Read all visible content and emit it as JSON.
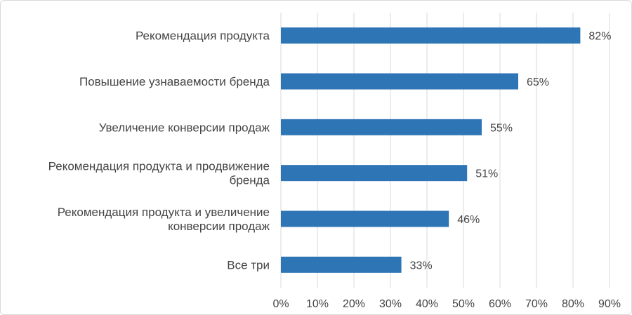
{
  "chart_data": {
    "type": "bar",
    "orientation": "horizontal",
    "categories": [
      "Рекомендация продукта",
      "Повышение узнаваемости бренда",
      "Увеличение конверсии продаж",
      "Рекомендация продукта и продвижение бренда",
      "Рекомендация продукта и увеличение конверсии продаж",
      "Все три"
    ],
    "category_lines": [
      [
        "Рекомендация продукта"
      ],
      [
        "Повышение узнаваемости бренда"
      ],
      [
        "Увеличение конверсии продаж"
      ],
      [
        "Рекомендация продукта и продвижение",
        "бренда"
      ],
      [
        "Рекомендация продукта и увеличение",
        "конверсии продаж"
      ],
      [
        "Все три"
      ]
    ],
    "values": [
      82,
      65,
      55,
      51,
      46,
      33
    ],
    "data_labels": [
      "82%",
      "65%",
      "55%",
      "51%",
      "46%",
      "33%"
    ],
    "xlim": [
      0,
      90
    ],
    "x_ticks": [
      0,
      10,
      20,
      30,
      40,
      50,
      60,
      70,
      80,
      90
    ],
    "x_tick_labels": [
      "0%",
      "10%",
      "20%",
      "30%",
      "40%",
      "50%",
      "60%",
      "70%",
      "80%",
      "90%"
    ],
    "grid": true,
    "legend": "none",
    "bar_color": "#2e75b6",
    "grid_color": "#d9d9d9"
  }
}
